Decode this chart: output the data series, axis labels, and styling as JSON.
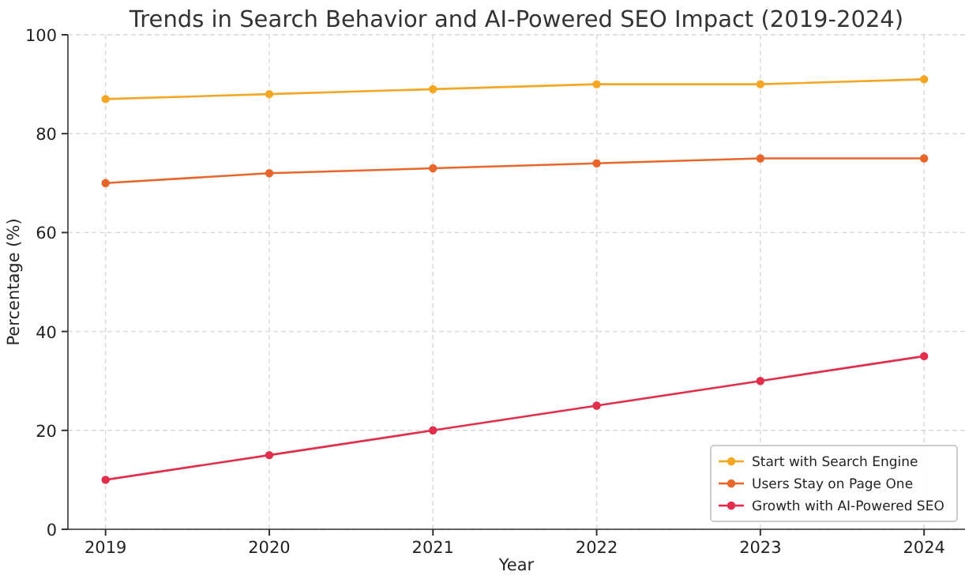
{
  "chart_data": {
    "type": "line",
    "title": "Trends in Search Behavior and AI-Powered SEO Impact (2019-2024)",
    "xlabel": "Year",
    "ylabel": "Percentage (%)",
    "x": [
      2019,
      2020,
      2021,
      2022,
      2023,
      2024
    ],
    "series": [
      {
        "name": "Start with Search Engine",
        "color": "#f5a623",
        "values": [
          87,
          88,
          89,
          90,
          90,
          91
        ]
      },
      {
        "name": "Users Stay on Page One",
        "color": "#e8662a",
        "values": [
          70,
          72,
          73,
          74,
          75,
          75
        ]
      },
      {
        "name": "Growth with AI-Powered SEO",
        "color": "#e22d4b",
        "values": [
          10,
          15,
          20,
          25,
          30,
          35
        ]
      }
    ],
    "xlim": [
      2018.77,
      2024.25
    ],
    "xticks": [
      2019,
      2020,
      2021,
      2022,
      2023,
      2024
    ],
    "ylim": [
      0,
      100
    ],
    "yticks": [
      0,
      20,
      40,
      60,
      80,
      100
    ],
    "grid": true,
    "legend": "bottom right",
    "marker": "circle",
    "line_style": "solid"
  }
}
